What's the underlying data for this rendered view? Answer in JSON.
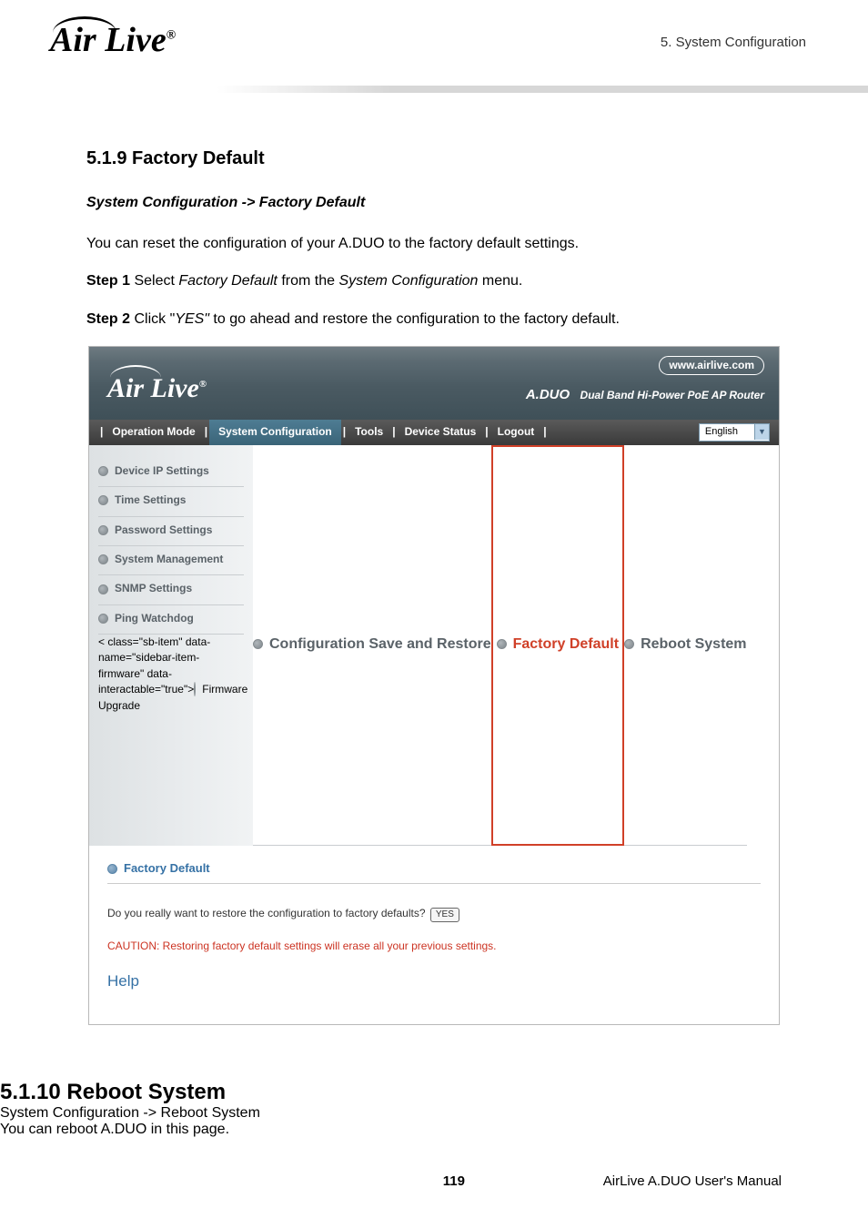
{
  "header": {
    "logo_text": "Air Live",
    "logo_reg": "®",
    "chapter_ref": "5.  System  Configuration"
  },
  "section1": {
    "heading": "5.1.9 Factory Default",
    "breadcrumb": "System Configuration -> Factory Default",
    "intro": "You can reset the configuration of your A.DUO to the factory default settings.",
    "step1_label": "Step 1 ",
    "step1_a": "Select ",
    "step1_b": "Factory Default",
    "step1_c": " from the ",
    "step1_d": "System Configuration",
    "step1_e": " menu.",
    "step2_label": "Step 2 ",
    "step2_a": "Click \"",
    "step2_b": "YES\"",
    "step2_c": " to go ahead and restore the configuration to the factory default."
  },
  "screenshot": {
    "logo_text": "Air Live",
    "logo_reg": "®",
    "url": "www.airlive.com",
    "product": "A.DUO",
    "subtitle": "Dual Band Hi-Power PoE AP Router",
    "nav": {
      "operation_mode": "Operation Mode",
      "system_config": "System Configuration",
      "tools": "Tools",
      "device_status": "Device Status",
      "logout": "Logout",
      "language": "English"
    },
    "sidebar": {
      "device_ip": "Device IP Settings",
      "time": "Time Settings",
      "password": "Password Settings",
      "system_mgmt": "System Management",
      "snmp": "SNMP Settings",
      "ping": "Ping Watchdog",
      "firmware": "Firmware Upgrade",
      "config_save": "Configuration Save and Restore",
      "factory": "Factory Default",
      "reboot": "Reboot System"
    },
    "main": {
      "title": "Factory Default",
      "question": "Do you really want to restore the configuration to factory defaults?",
      "yes_btn": "YES",
      "caution": "CAUTION: Restoring factory default settings will erase all your previous settings.",
      "help": "Help"
    }
  },
  "section2": {
    "heading": "5.1.10 Reboot System",
    "breadcrumb": "System Configuration -> Reboot System",
    "intro": "You can reboot A.DUO in this page."
  },
  "footer": {
    "page_num": "119",
    "manual": "AirLive A.DUO User's Manual"
  }
}
